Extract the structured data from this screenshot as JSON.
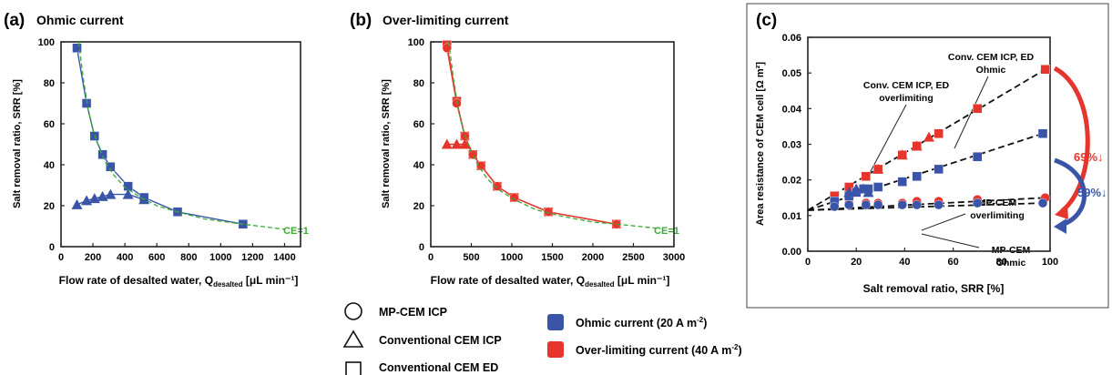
{
  "panels": [
    {
      "letter": "(a)",
      "title": "Ohmic current",
      "ylabel": "Salt removal ratio, SRR [%]",
      "xlabel": "Flow rate of desalted water, Q",
      "xlabel_sub": "desalted",
      "xlabel_unit": " [μL min⁻¹]",
      "annotation": "CE=1"
    },
    {
      "letter": "(b)",
      "title": "Over-limiting current",
      "ylabel": "Salt removal ratio, SRR [%]",
      "xlabel": "Flow rate of desalted water, Q",
      "xlabel_sub": "desalted",
      "xlabel_unit": " [μL min⁻¹]",
      "annotation": "CE=1"
    },
    {
      "letter": "(c)",
      "title": "",
      "ylabel": "Area resistance of CEM cell [Ω m²]",
      "xlabel": "Salt removal ratio, SRR [%]",
      "annotations": {
        "conv_ohmic": [
          "Conv. CEM ICP, ED",
          "Ohmic"
        ],
        "conv_over": [
          "Conv. CEM ICP, ED",
          "overlimiting"
        ],
        "mp_over": [
          "MP-CEM",
          "overlimiting"
        ],
        "mp_ohmic": [
          "MP-CEM",
          "Ohmic"
        ],
        "pct_red": "69%↓",
        "pct_blue": "59%↓"
      }
    }
  ],
  "legend": {
    "shapes": [
      {
        "shape": "circle",
        "label": "MP-CEM ICP"
      },
      {
        "shape": "triangle",
        "label": "Conventional CEM ICP"
      },
      {
        "shape": "square",
        "label": "Conventional CEM ED"
      }
    ],
    "colors": [
      {
        "color": "#3a55a8",
        "label": "Ohmic current (20 A m",
        "sup": "-2",
        "tail": ")"
      },
      {
        "color": "#e5352c",
        "label": "Over-limiting current (40 A m",
        "sup": "-2",
        "tail": ")"
      }
    ]
  },
  "colors": {
    "blue": "#3a55a8",
    "red": "#e5352c",
    "green": "#3aaa35"
  },
  "chart_data": [
    {
      "type": "line",
      "title": "Ohmic current",
      "xlabel": "Flow rate of desalted water, Qdesalted [μL min⁻¹]",
      "ylabel": "Salt removal ratio, SRR [%]",
      "xlim": [
        0,
        1500
      ],
      "ylim": [
        0,
        100
      ],
      "xticks": [
        0,
        200,
        400,
        600,
        800,
        1000,
        1200,
        1400
      ],
      "yticks": [
        0,
        20,
        40,
        60,
        80,
        100
      ],
      "series": [
        {
          "marker": "square",
          "color": "#3a55a8",
          "x": [
            100,
            160,
            210,
            260,
            310,
            420,
            520,
            730,
            1140
          ],
          "y": [
            97,
            70,
            54,
            45,
            39,
            29.5,
            24,
            17,
            11
          ]
        },
        {
          "marker": "triangle",
          "color": "#3a55a8",
          "x": [
            100,
            160,
            210,
            260,
            310,
            420,
            520
          ],
          "y": [
            20.5,
            22.5,
            23.5,
            24.5,
            25.5,
            25.5,
            23
          ]
        },
        {
          "marker": "dashed",
          "color": "#3aaa35",
          "x": [
            110,
            140,
            170,
            200,
            240,
            280,
            330,
            400,
            500,
            600,
            730,
            900,
            1140,
            1400
          ],
          "y": [
            100,
            82,
            67,
            57,
            48,
            41,
            35,
            29,
            24,
            20,
            17,
            13.5,
            11,
            8.5
          ]
        }
      ]
    },
    {
      "type": "line",
      "title": "Over-limiting current",
      "xlabel": "Flow rate of desalted water, Qdesalted [μL min⁻¹]",
      "ylabel": "Salt removal ratio, SRR [%]",
      "xlim": [
        0,
        3000
      ],
      "ylim": [
        0,
        100
      ],
      "xticks": [
        0,
        500,
        1000,
        1500,
        2000,
        2500,
        3000
      ],
      "yticks": [
        0,
        20,
        40,
        60,
        80,
        100
      ],
      "series": [
        {
          "marker": "square",
          "color": "#e5352c",
          "x": [
            200,
            320,
            420,
            520,
            620,
            820,
            1030,
            1450,
            2290
          ],
          "y": [
            98.5,
            71,
            54,
            45,
            39.5,
            29.5,
            24,
            17,
            11
          ]
        },
        {
          "marker": "circle",
          "color": "#e5352c",
          "x": [
            200,
            320,
            420,
            520,
            620,
            820,
            1030,
            1450,
            2290
          ],
          "y": [
            97,
            70,
            54,
            45,
            39.5,
            29.5,
            24,
            17,
            11
          ]
        },
        {
          "marker": "triangle",
          "color": "#e5352c",
          "x": [
            200,
            320,
            420
          ],
          "y": [
            50,
            50,
            50
          ]
        },
        {
          "marker": "dashed",
          "color": "#3aaa35",
          "x": [
            220,
            280,
            340,
            400,
            480,
            580,
            700,
            850,
            1030,
            1300,
            1600,
            2000,
            2300,
            2800
          ],
          "y": [
            100,
            82,
            67,
            57,
            48,
            40,
            33,
            27.5,
            23,
            18,
            15,
            12,
            11,
            9
          ]
        }
      ]
    },
    {
      "type": "line",
      "title": "",
      "xlabel": "Salt removal ratio, SRR [%]",
      "ylabel": "Area resistance of CEM cell [Ω m²]",
      "xlim": [
        0,
        100
      ],
      "ylim": [
        0,
        0.06
      ],
      "xticks": [
        0,
        20,
        40,
        60,
        80,
        100
      ],
      "yticks": [
        0,
        0.01,
        0.02,
        0.03,
        0.04,
        0.05,
        0.06
      ],
      "series": [
        {
          "marker": "square",
          "color": "#e5352c",
          "x": [
            11,
            17,
            24,
            29,
            39,
            45,
            54,
            70,
            98
          ],
          "y": [
            0.0155,
            0.018,
            0.021,
            0.023,
            0.027,
            0.0295,
            0.033,
            0.04,
            0.051
          ]
        },
        {
          "marker": "triangle",
          "color": "#e5352c",
          "x": [
            29,
            39,
            45,
            50
          ],
          "y": [
            0.023,
            0.027,
            0.0295,
            0.032
          ]
        },
        {
          "marker": "circle",
          "color": "#e5352c",
          "x": [
            11,
            17,
            24,
            29,
            39,
            45,
            54,
            70,
            98
          ],
          "y": [
            0.0135,
            0.0135,
            0.0135,
            0.0135,
            0.0135,
            0.014,
            0.014,
            0.0145,
            0.015
          ]
        },
        {
          "marker": "square",
          "color": "#3a55a8",
          "x": [
            11,
            17,
            20,
            23,
            25,
            29,
            39,
            45,
            54,
            70,
            97
          ],
          "y": [
            0.014,
            0.0155,
            0.0165,
            0.0175,
            0.0175,
            0.018,
            0.0195,
            0.021,
            0.023,
            0.0265,
            0.033
          ]
        },
        {
          "marker": "triangle",
          "color": "#3a55a8",
          "x": [
            17,
            20,
            23,
            25
          ],
          "y": [
            0.0165,
            0.0175,
            0.0175,
            0.0165
          ]
        },
        {
          "marker": "circle",
          "color": "#3a55a8",
          "x": [
            11,
            17,
            24,
            29,
            39,
            45,
            54,
            70,
            97
          ],
          "y": [
            0.0125,
            0.013,
            0.013,
            0.013,
            0.013,
            0.013,
            0.013,
            0.0135,
            0.0135
          ]
        }
      ],
      "trendlines": [
        {
          "name": "Conv. CEM ICP, ED overlimiting",
          "x": [
            0,
            98
          ],
          "y": [
            0.0115,
            0.051
          ]
        },
        {
          "name": "Conv. CEM ICP, ED Ohmic",
          "x": [
            0,
            97
          ],
          "y": [
            0.0115,
            0.033
          ]
        },
        {
          "name": "MP-CEM overlimiting",
          "x": [
            0,
            98
          ],
          "y": [
            0.0115,
            0.015
          ]
        },
        {
          "name": "MP-CEM Ohmic",
          "x": [
            0,
            97
          ],
          "y": [
            0.0115,
            0.0135
          ]
        }
      ]
    }
  ]
}
